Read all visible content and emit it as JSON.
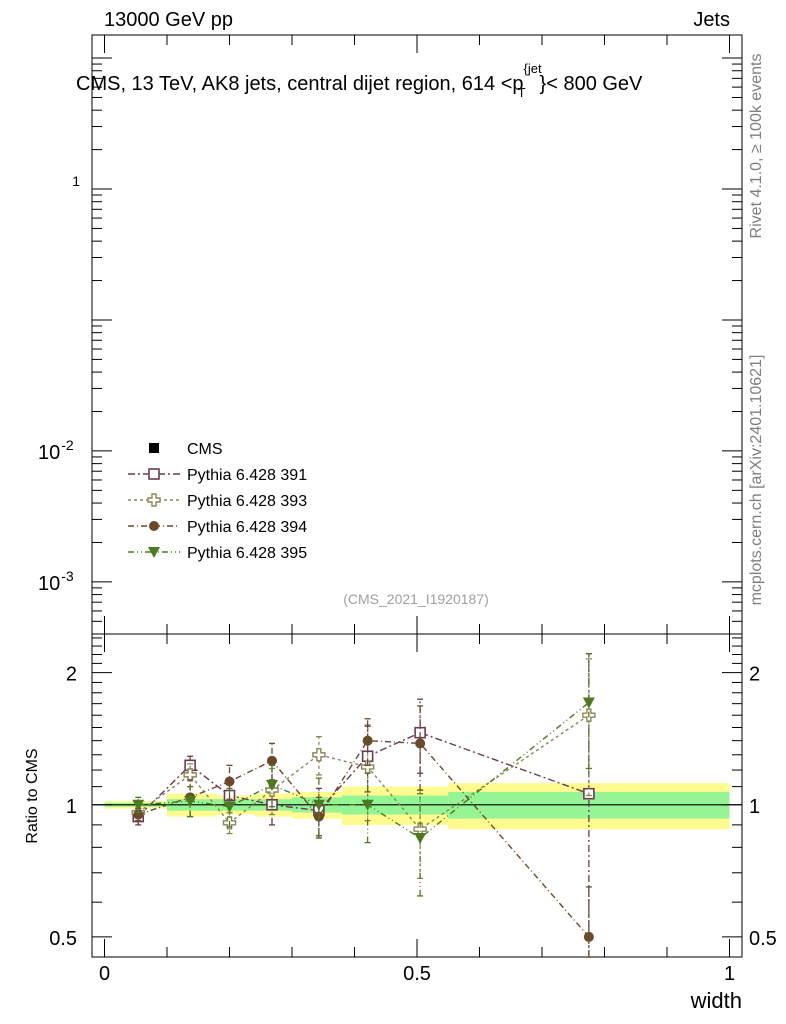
{
  "header": {
    "left": "13000 GeV pp",
    "right": "Jets"
  },
  "side_labels": {
    "rivet": "Rivet 4.1.0, ≥ 100k events",
    "mcplots": "mcplots.cern.ch [arXiv:2401.10621]"
  },
  "chart_data": {
    "type": "line",
    "title": "CMS, 13 TeV, AK8 jets, central dijet region, 614 <p_T^{jet}< 800 GeV",
    "analysis_id": "(CMS_2021_I1920187)",
    "xlabel": "width",
    "x_ticks": [
      "0",
      "0.5",
      "1"
    ],
    "xlim": [
      -0.02,
      1.02
    ],
    "main_panel": {
      "yscale": "log",
      "ylim": [
        0.0004,
        15
      ],
      "y_ticks": [
        {
          "value": 1,
          "label": "1"
        },
        {
          "value": 0.01,
          "label": "10^{-2}"
        },
        {
          "value": 0.001,
          "label": "10^{-3}"
        }
      ]
    },
    "ratio_panel": {
      "ylabel": "Ratio to CMS",
      "yscale": "log",
      "ylim": [
        0.45,
        2.45
      ],
      "y_ticks": [
        {
          "value": 0.5,
          "label": "0.5"
        },
        {
          "value": 1,
          "label": "1"
        },
        {
          "value": 2,
          "label": "2"
        }
      ],
      "bins": [
        {
          "lo": 0.0,
          "hi": 0.1,
          "stat": 0.01,
          "tot": 0.02
        },
        {
          "lo": 0.1,
          "hi": 0.18,
          "stat": 0.03,
          "tot": 0.06
        },
        {
          "lo": 0.18,
          "hi": 0.24,
          "stat": 0.03,
          "tot": 0.05
        },
        {
          "lo": 0.24,
          "hi": 0.3,
          "stat": 0.03,
          "tot": 0.06
        },
        {
          "lo": 0.3,
          "hi": 0.38,
          "stat": 0.04,
          "tot": 0.07
        },
        {
          "lo": 0.38,
          "hi": 0.45,
          "stat": 0.05,
          "tot": 0.1
        },
        {
          "lo": 0.45,
          "hi": 0.55,
          "stat": 0.05,
          "tot": 0.1
        },
        {
          "lo": 0.55,
          "hi": 1.0,
          "stat": 0.07,
          "tot": 0.12
        }
      ]
    },
    "legend": {
      "position": "lower-left",
      "entries": [
        "CMS",
        "Pythia 6.428 391",
        "Pythia 6.428 393",
        "Pythia 6.428 394",
        "Pythia 6.428 395"
      ]
    },
    "series": [
      {
        "name": "Pythia 6.428 391",
        "marker": "open-square",
        "color": "#6b3a54",
        "x": [
          0.054,
          0.137,
          0.2,
          0.268,
          0.343,
          0.421,
          0.505,
          0.775
        ],
        "ratio": [
          0.94,
          1.23,
          1.05,
          1.0,
          0.97,
          1.29,
          1.46,
          1.06
        ],
        "err": [
          0.04,
          0.06,
          0.09,
          0.1,
          0.12,
          0.22,
          0.28,
          1.15
        ]
      },
      {
        "name": "Pythia 6.428 393",
        "marker": "open-plus",
        "color": "#8b8555",
        "x": [
          0.054,
          0.137,
          0.2,
          0.268,
          0.343,
          0.421,
          0.505,
          0.775
        ],
        "ratio": [
          0.96,
          1.17,
          0.91,
          1.08,
          1.3,
          1.22,
          0.88,
          1.6
        ],
        "err": [
          0.04,
          0.07,
          0.05,
          0.13,
          0.13,
          0.3,
          0.2,
          0.55
        ]
      },
      {
        "name": "Pythia 6.428 394",
        "marker": "filled-circle",
        "color": "#6b4a2b",
        "x": [
          0.054,
          0.137,
          0.2,
          0.268,
          0.343,
          0.421,
          0.505,
          0.775
        ],
        "ratio": [
          0.95,
          1.04,
          1.13,
          1.26,
          0.94,
          1.4,
          1.38,
          0.5
        ],
        "err": [
          0.03,
          0.1,
          0.1,
          0.12,
          0.1,
          0.17,
          0.3,
          0.15
        ]
      },
      {
        "name": "Pythia 6.428 395",
        "marker": "filled-triangle-down",
        "color": "#4c7a1e",
        "x": [
          0.054,
          0.137,
          0.2,
          0.268,
          0.343,
          0.421,
          0.505,
          0.775
        ],
        "ratio": [
          1.0,
          1.02,
          0.99,
          1.11,
          1.0,
          1.0,
          0.84,
          1.71
        ],
        "err": [
          0.04,
          0.08,
          0.1,
          0.12,
          0.15,
          0.18,
          0.22,
          0.5
        ]
      }
    ]
  }
}
